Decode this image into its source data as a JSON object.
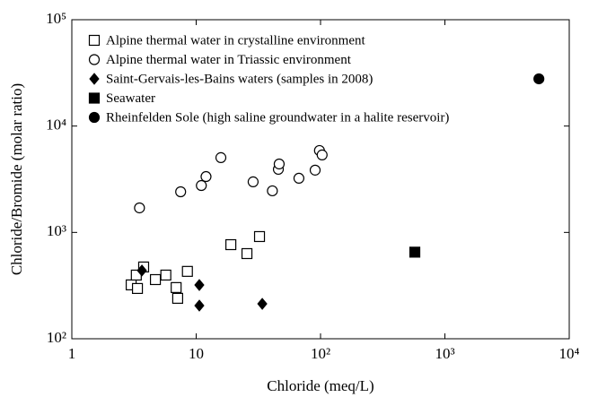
{
  "chart_data": {
    "type": "scatter",
    "x_label": "Chloride (meq/L)",
    "y_label": "Chloride/Bromide (molar ratio)",
    "log_x": true,
    "log_y": true,
    "xlim": [
      1,
      10000
    ],
    "ylim": [
      100,
      100000
    ],
    "xticks": [
      1,
      10,
      {
        "value": 100,
        "label": "10²"
      },
      {
        "value": 1000,
        "label": "10³"
      },
      {
        "value": 10000,
        "label": "10⁴"
      }
    ],
    "yticks": [
      {
        "value": 100,
        "label": "10²"
      },
      {
        "value": 1000,
        "label": "10³"
      },
      {
        "value": 10000,
        "label": "10⁴"
      },
      {
        "value": 100000,
        "label": "10⁵"
      }
    ],
    "legend": "upper left",
    "series": [
      {
        "name": "Alpine thermal water in crystalline environment",
        "marker": "square",
        "filled": false,
        "color": "#000000",
        "x": [
          3.0,
          3.37,
          3.3,
          3.78,
          4.7,
          5.7,
          6.9,
          7.1,
          8.5,
          19,
          25.6,
          32.3
        ],
        "values": [
          321,
          297,
          397,
          473,
          360,
          397,
          303,
          240,
          430,
          767,
          632,
          914
        ]
      },
      {
        "name": "Alpine thermal water in Triassic environment",
        "marker": "circle",
        "filled": false,
        "color": "#000000",
        "x": [
          3.5,
          7.5,
          11,
          12,
          15.8,
          28.7,
          41,
          45.8,
          46.5,
          67,
          90.5,
          98,
          103
        ],
        "values": [
          1700,
          2410,
          2760,
          3350,
          5050,
          2990,
          2460,
          3920,
          4400,
          3230,
          3850,
          5890,
          5350
        ]
      },
      {
        "name": "Saint-Gervais-les-Bains waters (samples in 2008)",
        "marker": "diamond",
        "filled": true,
        "color": "#000000",
        "x": [
          3.66,
          10.6,
          10.6,
          34
        ],
        "values": [
          438,
          320,
          205,
          213
        ]
      },
      {
        "name": "Seawater",
        "marker": "square",
        "filled": true,
        "color": "#000000",
        "x": [
          573
        ],
        "values": [
          652
        ]
      },
      {
        "name": "Rheinfelden Sole (high saline groundwater in a halite reservoir)",
        "marker": "circle",
        "filled": true,
        "color": "#000000",
        "x": [
          5700
        ],
        "values": [
          27800
        ]
      }
    ]
  }
}
